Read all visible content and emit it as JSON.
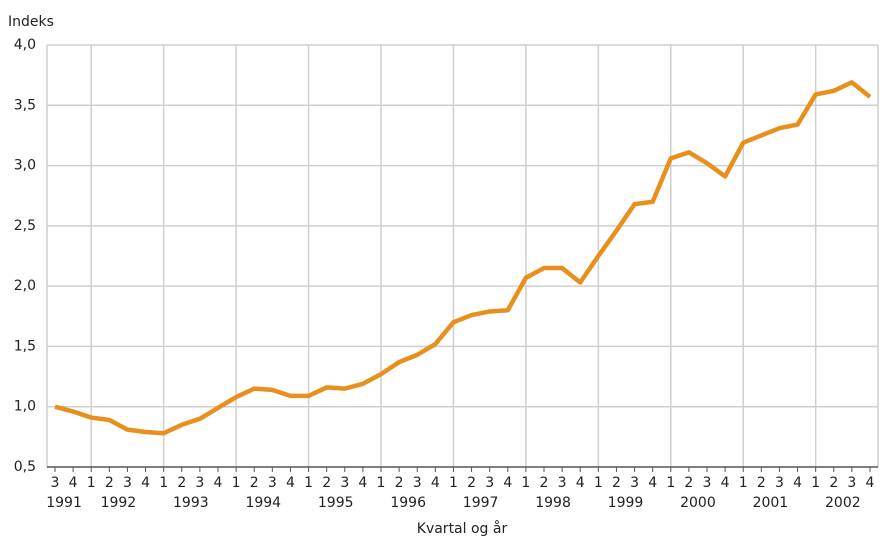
{
  "chart_data": {
    "type": "line",
    "y_label": "Indeks",
    "x_label": "Kvartal og år",
    "categories": [
      "3",
      "4",
      "1",
      "2",
      "3",
      "4",
      "1",
      "2",
      "3",
      "4",
      "1",
      "2",
      "3",
      "4",
      "1",
      "2",
      "3",
      "4",
      "1",
      "2",
      "3",
      "4",
      "1",
      "2",
      "3",
      "4",
      "1",
      "2",
      "3",
      "4",
      "1",
      "2",
      "3",
      "4",
      "1",
      "2",
      "3",
      "4",
      "1",
      "2",
      "3",
      "4",
      "1",
      "2",
      "3",
      "4"
    ],
    "years": [
      "1991",
      "1992",
      "1993",
      "1994",
      "1995",
      "1996",
      "1997",
      "1998",
      "1999",
      "2000",
      "2001",
      "2002"
    ],
    "series": [
      {
        "color": "#e8901d",
        "values": [
          1.0,
          0.96,
          0.91,
          0.89,
          0.81,
          0.79,
          0.78,
          0.85,
          0.9,
          0.99,
          1.08,
          1.15,
          1.14,
          1.09,
          1.09,
          1.16,
          1.15,
          1.19,
          1.27,
          1.37,
          1.43,
          1.52,
          1.7,
          1.76,
          1.79,
          1.8,
          2.07,
          2.15,
          2.15,
          2.03,
          2.25,
          2.46,
          2.68,
          2.7,
          3.06,
          3.11,
          3.02,
          2.91,
          3.19,
          3.25,
          3.31,
          3.34,
          3.59,
          3.62,
          3.69,
          3.57
        ]
      }
    ],
    "ylim": [
      0.5,
      4.0
    ],
    "yticks": [
      {
        "value": 0.5,
        "label": "0,5"
      },
      {
        "value": 1.0,
        "label": "1,0"
      },
      {
        "value": 1.5,
        "label": "1,5"
      },
      {
        "value": 2.0,
        "label": "2,0"
      },
      {
        "value": 2.5,
        "label": "2,5"
      },
      {
        "value": 3.0,
        "label": "3,0"
      },
      {
        "value": 3.5,
        "label": "3,5"
      },
      {
        "value": 4.0,
        "label": "4,0"
      }
    ],
    "grid": true
  }
}
